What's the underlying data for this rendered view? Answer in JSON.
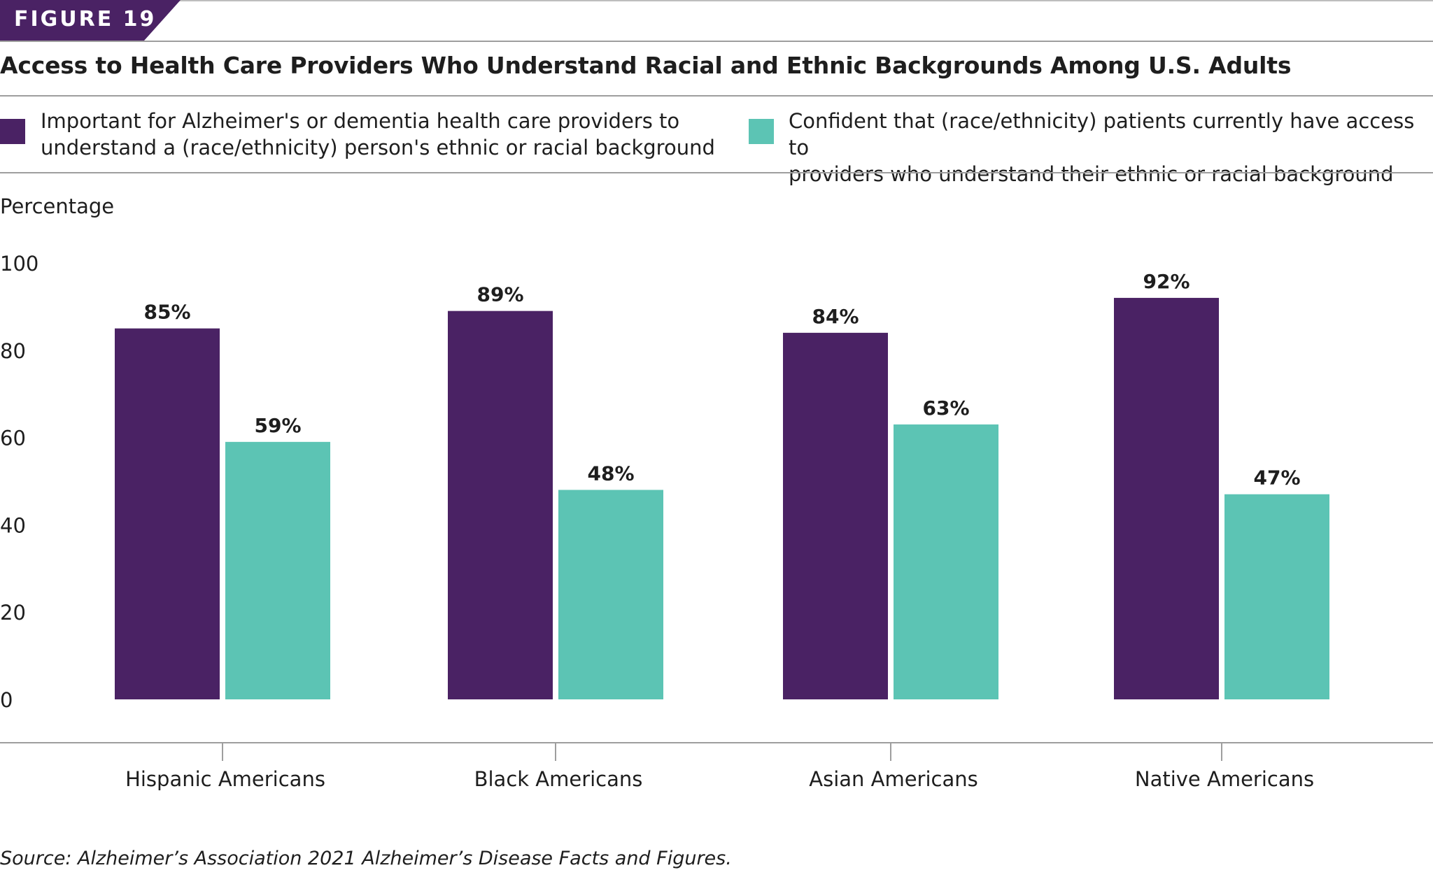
{
  "figure_label": "FIGURE 19",
  "title": "Access to Health Care Providers Who Understand Racial and Ethnic Backgrounds Among U.S. Adults",
  "colors": {
    "purple": "#4a2264",
    "teal": "#5cc4b4",
    "rule": "#9e9e9e"
  },
  "legend": {
    "items": [
      {
        "line1": "Important for Alzheimer's or dementia health care providers to",
        "line2": "understand a (race/ethnicity) person's ethnic or racial background",
        "color": "#4a2264"
      },
      {
        "line1": "Confident that (race/ethnicity) patients currently have access to",
        "line2": "providers who understand their ethnic or racial background",
        "color": "#5cc4b4"
      }
    ]
  },
  "source": "Source: Alzheimer’s Association 2021 Alzheimer’s Disease Facts and Figures.",
  "chart_data": {
    "type": "bar",
    "title": "Access to Health Care Providers Who Understand Racial and Ethnic Backgrounds Among U.S. Adults",
    "ylabel": "Percentage",
    "xlabel": "",
    "ylim": [
      0,
      100
    ],
    "yticks": [
      0,
      20,
      40,
      60,
      80,
      100
    ],
    "grid": false,
    "legend_position": "top",
    "categories": [
      "Hispanic Americans",
      "Black Americans",
      "Asian Americans",
      "Native Americans"
    ],
    "series": [
      {
        "name": "Important for Alzheimer's or dementia health care providers to understand a (race/ethnicity) person's ethnic or racial background",
        "values": [
          85,
          89,
          84,
          92
        ],
        "labels": [
          "85%",
          "89%",
          "84%",
          "92%"
        ],
        "color": "#4a2264"
      },
      {
        "name": "Confident that (race/ethnicity) patients currently have access to providers who understand their ethnic or racial background",
        "values": [
          59,
          48,
          63,
          47
        ],
        "labels": [
          "59%",
          "48%",
          "63%",
          "47%"
        ],
        "color": "#5cc4b4"
      }
    ]
  }
}
